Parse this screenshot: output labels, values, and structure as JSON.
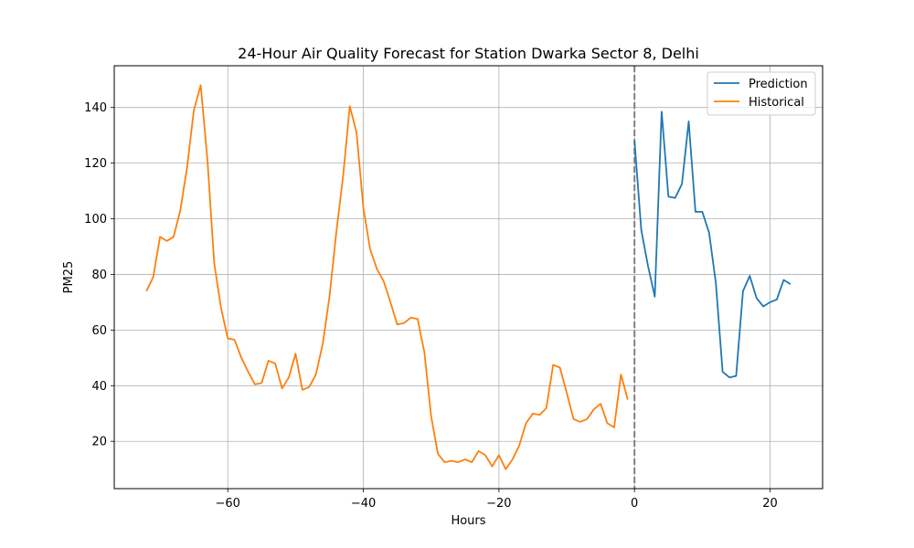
{
  "chart_data": {
    "type": "line",
    "title": "24-Hour Air Quality Forecast for Station Dwarka Sector 8, Delhi",
    "xlabel": "Hours",
    "ylabel": "PM25",
    "xlim": [
      -76.75,
      27.75
    ],
    "ylim": [
      3,
      155
    ],
    "x_ticks": [
      -60,
      -40,
      -20,
      0,
      20
    ],
    "x_tick_labels": [
      "−60",
      "−40",
      "−20",
      "0",
      "20"
    ],
    "y_ticks": [
      20,
      40,
      60,
      80,
      100,
      120,
      140
    ],
    "y_tick_labels": [
      "20",
      "40",
      "60",
      "80",
      "100",
      "120",
      "140"
    ],
    "grid": true,
    "legend_position": "upper right",
    "vline": {
      "x": 0,
      "style": "dashed",
      "color": "#808080"
    },
    "series": [
      {
        "name": "Prediction",
        "color": "#1f77b4",
        "x": [
          0,
          1,
          2,
          3,
          4,
          5,
          6,
          7,
          8,
          9,
          10,
          11,
          12,
          13,
          14,
          15,
          16,
          17,
          18,
          19,
          20,
          21,
          22,
          23
        ],
        "y": [
          128,
          96,
          83,
          72,
          138.5,
          108,
          107.5,
          112.5,
          135,
          102.5,
          102.5,
          95,
          77,
          45,
          43,
          43.5,
          74,
          79.5,
          71.5,
          68.5,
          70,
          71,
          78,
          76.5
        ]
      },
      {
        "name": "Historical",
        "color": "#ff7f0e",
        "x": [
          -72,
          -71,
          -70,
          -69,
          -68,
          -67,
          -66,
          -65,
          -64,
          -63,
          -62,
          -61,
          -60,
          -59,
          -58,
          -57,
          -56,
          -55,
          -54,
          -53,
          -52,
          -51,
          -50,
          -49,
          -48,
          -47,
          -46,
          -45,
          -44,
          -43,
          -42,
          -41,
          -40,
          -39,
          -38,
          -37,
          -36,
          -35,
          -34,
          -33,
          -32,
          -31,
          -30,
          -29,
          -28,
          -27,
          -26,
          -25,
          -24,
          -23,
          -22,
          -21,
          -20,
          -19,
          -18,
          -17,
          -16,
          -15,
          -14,
          -13,
          -12,
          -11,
          -10,
          -9,
          -8,
          -7,
          -6,
          -5,
          -4,
          -3,
          -2,
          -1
        ],
        "y": [
          74,
          79,
          93.5,
          92,
          93.5,
          103,
          118.5,
          139,
          148,
          121,
          84,
          68,
          57,
          56.5,
          50,
          45,
          40.5,
          41,
          49,
          48,
          39,
          43,
          51.5,
          38.5,
          39.5,
          44,
          55,
          72,
          95,
          115,
          140.5,
          131,
          104,
          89,
          82,
          77.5,
          70,
          62,
          62.5,
          64.5,
          64,
          52,
          29,
          15.5,
          12.5,
          13,
          12.5,
          13.5,
          12.5,
          16.5,
          15,
          11,
          15,
          10,
          13.5,
          18.5,
          26.5,
          30,
          29.5,
          32,
          47.5,
          46.5,
          37.5,
          28,
          27,
          28,
          31.5,
          33.5,
          26.5,
          25,
          44,
          35
        ]
      }
    ]
  }
}
